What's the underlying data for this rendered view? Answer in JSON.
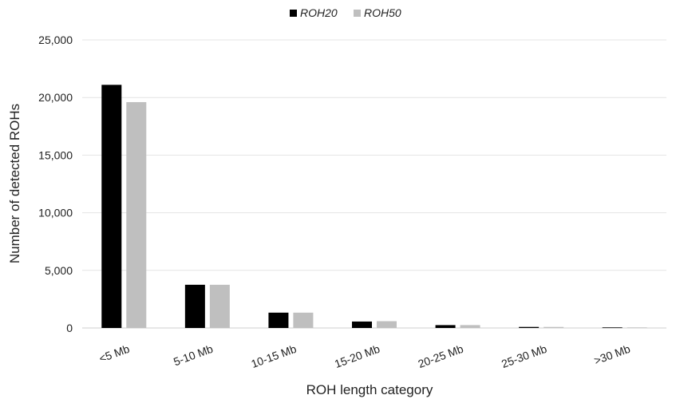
{
  "chart_data": {
    "type": "bar",
    "categories": [
      "<5 Mb",
      "5-10 Mb",
      "10-15 Mb",
      "15-20 Mb",
      "20-25 Mb",
      "25-30 Mb",
      ">30 Mb"
    ],
    "series": [
      {
        "name": "ROH20",
        "color": "#000000",
        "values": [
          21100,
          3750,
          1330,
          560,
          250,
          90,
          50
        ]
      },
      {
        "name": "ROH50",
        "color": "#bfbfbf",
        "values": [
          19600,
          3750,
          1330,
          590,
          250,
          90,
          50
        ]
      }
    ],
    "xlabel": "ROH length category",
    "ylabel": "Number of detected ROHs",
    "ylim": [
      0,
      25000
    ],
    "yticks": [
      0,
      5000,
      10000,
      15000,
      20000,
      25000
    ],
    "ytick_labels": [
      "0",
      "5,000",
      "10,000",
      "15,000",
      "20,000",
      "25,000"
    ],
    "grid": true,
    "legend_position": "top-center"
  }
}
